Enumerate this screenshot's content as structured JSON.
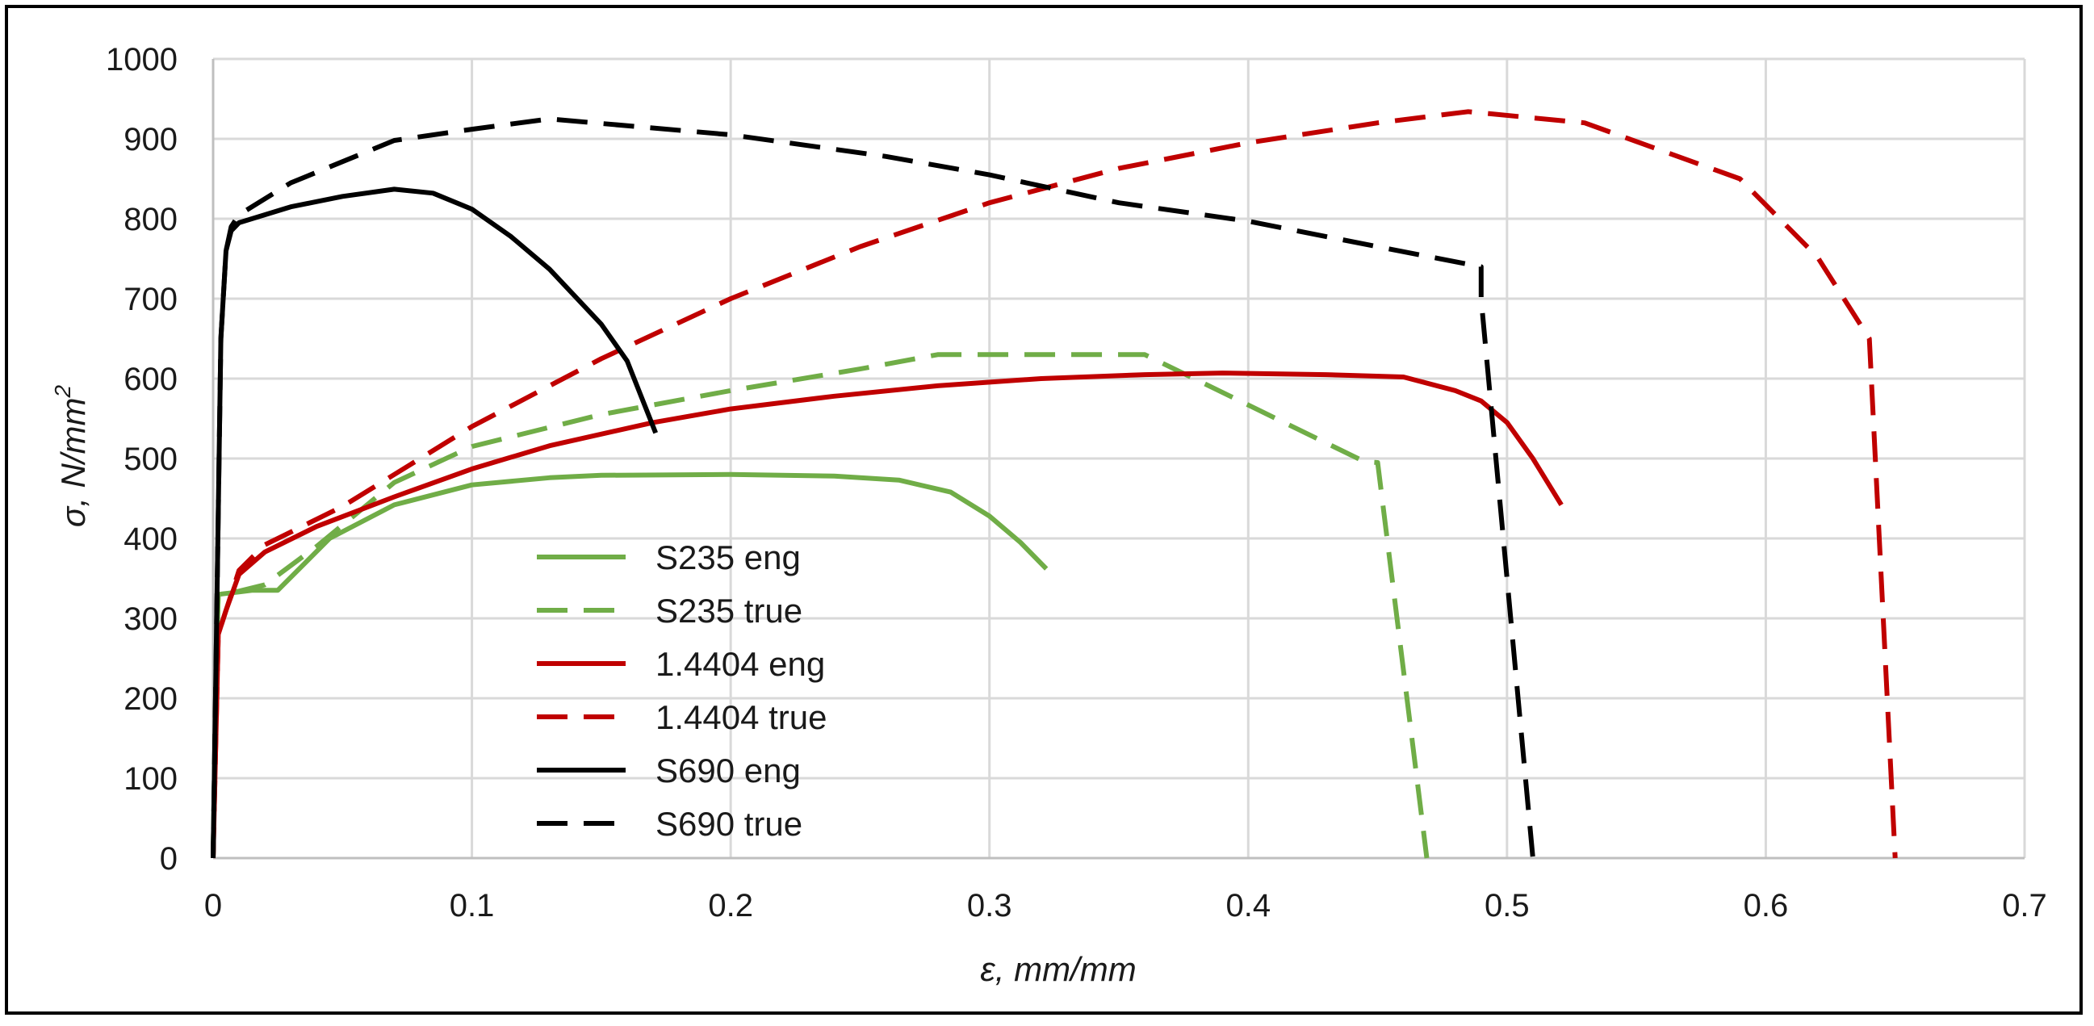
{
  "chart_data": {
    "type": "line",
    "title": "",
    "xlabel": "ε, mm/mm",
    "ylabel_main": "σ, N/mm",
    "ylabel_sup": "2",
    "xlim": [
      0,
      0.7
    ],
    "ylim": [
      0,
      1000
    ],
    "grid": true,
    "legend_position": "center-left",
    "x_ticks": [
      0,
      0.1,
      0.2,
      0.3,
      0.4,
      0.5,
      0.6,
      0.7
    ],
    "x_tick_labels": [
      "0",
      "0.1",
      "0.2",
      "0.3",
      "0.4",
      "0.5",
      "0.6",
      "0.7"
    ],
    "y_ticks": [
      0,
      100,
      200,
      300,
      400,
      500,
      600,
      700,
      800,
      900,
      1000
    ],
    "y_tick_labels": [
      "0",
      "100",
      "200",
      "300",
      "400",
      "500",
      "600",
      "700",
      "800",
      "900",
      "1000"
    ],
    "series": [
      {
        "name": "S235  eng",
        "color": "#70AD47",
        "dash": "solid",
        "points": [
          [
            0,
            0
          ],
          [
            0.0012,
            240
          ],
          [
            0.002,
            330
          ],
          [
            0.01,
            333
          ],
          [
            0.015,
            335
          ],
          [
            0.025,
            335
          ],
          [
            0.045,
            400
          ],
          [
            0.07,
            442
          ],
          [
            0.1,
            467
          ],
          [
            0.13,
            476
          ],
          [
            0.15,
            479
          ],
          [
            0.2,
            480
          ],
          [
            0.24,
            478
          ],
          [
            0.265,
            473
          ],
          [
            0.285,
            458
          ],
          [
            0.3,
            428
          ],
          [
            0.312,
            395
          ],
          [
            0.322,
            362
          ]
        ]
      },
      {
        "name": "S235  true",
        "color": "#70AD47",
        "dash": "dashed",
        "points": [
          [
            0,
            0
          ],
          [
            0.0012,
            240
          ],
          [
            0.002,
            330
          ],
          [
            0.01,
            334
          ],
          [
            0.02,
            342
          ],
          [
            0.04,
            390
          ],
          [
            0.07,
            470
          ],
          [
            0.1,
            515
          ],
          [
            0.15,
            555
          ],
          [
            0.2,
            585
          ],
          [
            0.25,
            612
          ],
          [
            0.28,
            630
          ],
          [
            0.32,
            630
          ],
          [
            0.36,
            630
          ],
          [
            0.4,
            567
          ],
          [
            0.445,
            496
          ],
          [
            0.45,
            495
          ],
          [
            0.469,
            0
          ]
        ]
      },
      {
        "name": "1.4404  eng",
        "color": "#C00000",
        "dash": "solid",
        "points": [
          [
            0,
            0
          ],
          [
            0.002,
            280
          ],
          [
            0.005,
            310
          ],
          [
            0.01,
            355
          ],
          [
            0.02,
            383
          ],
          [
            0.04,
            415
          ],
          [
            0.07,
            452
          ],
          [
            0.1,
            487
          ],
          [
            0.13,
            516
          ],
          [
            0.17,
            545
          ],
          [
            0.2,
            562
          ],
          [
            0.24,
            578
          ],
          [
            0.28,
            591
          ],
          [
            0.32,
            600
          ],
          [
            0.36,
            605
          ],
          [
            0.39,
            607
          ],
          [
            0.43,
            605
          ],
          [
            0.46,
            602
          ],
          [
            0.48,
            585
          ],
          [
            0.49,
            572
          ],
          [
            0.5,
            545
          ],
          [
            0.51,
            500
          ],
          [
            0.521,
            442
          ]
        ]
      },
      {
        "name": "1.4404  true",
        "color": "#C00000",
        "dash": "dashed",
        "points": [
          [
            0,
            0
          ],
          [
            0.002,
            280
          ],
          [
            0.005,
            310
          ],
          [
            0.01,
            360
          ],
          [
            0.02,
            392
          ],
          [
            0.05,
            440
          ],
          [
            0.1,
            540
          ],
          [
            0.15,
            625
          ],
          [
            0.2,
            700
          ],
          [
            0.25,
            765
          ],
          [
            0.3,
            820
          ],
          [
            0.35,
            863
          ],
          [
            0.4,
            895
          ],
          [
            0.45,
            920
          ],
          [
            0.485,
            934
          ],
          [
            0.53,
            920
          ],
          [
            0.59,
            850
          ],
          [
            0.62,
            752
          ],
          [
            0.64,
            650
          ],
          [
            0.65,
            0
          ]
        ]
      },
      {
        "name": "S690  eng",
        "color": "#000000",
        "dash": "solid",
        "points": [
          [
            0,
            0
          ],
          [
            0.003,
            650
          ],
          [
            0.005,
            760
          ],
          [
            0.007,
            785
          ],
          [
            0.01,
            795
          ],
          [
            0.03,
            815
          ],
          [
            0.05,
            828
          ],
          [
            0.07,
            837
          ],
          [
            0.085,
            832
          ],
          [
            0.1,
            812
          ],
          [
            0.115,
            778
          ],
          [
            0.13,
            737
          ],
          [
            0.15,
            668
          ],
          [
            0.16,
            622
          ],
          [
            0.171,
            532
          ]
        ]
      },
      {
        "name": "S690  true",
        "color": "#000000",
        "dash": "dashed",
        "points": [
          [
            0,
            0
          ],
          [
            0.003,
            650
          ],
          [
            0.005,
            760
          ],
          [
            0.007,
            790
          ],
          [
            0.01,
            805
          ],
          [
            0.03,
            845
          ],
          [
            0.07,
            898
          ],
          [
            0.1,
            912
          ],
          [
            0.13,
            925
          ],
          [
            0.2,
            905
          ],
          [
            0.26,
            878
          ],
          [
            0.3,
            855
          ],
          [
            0.35,
            820
          ],
          [
            0.4,
            797
          ],
          [
            0.45,
            765
          ],
          [
            0.49,
            740
          ],
          [
            0.49,
            700
          ],
          [
            0.51,
            0
          ]
        ]
      }
    ]
  }
}
